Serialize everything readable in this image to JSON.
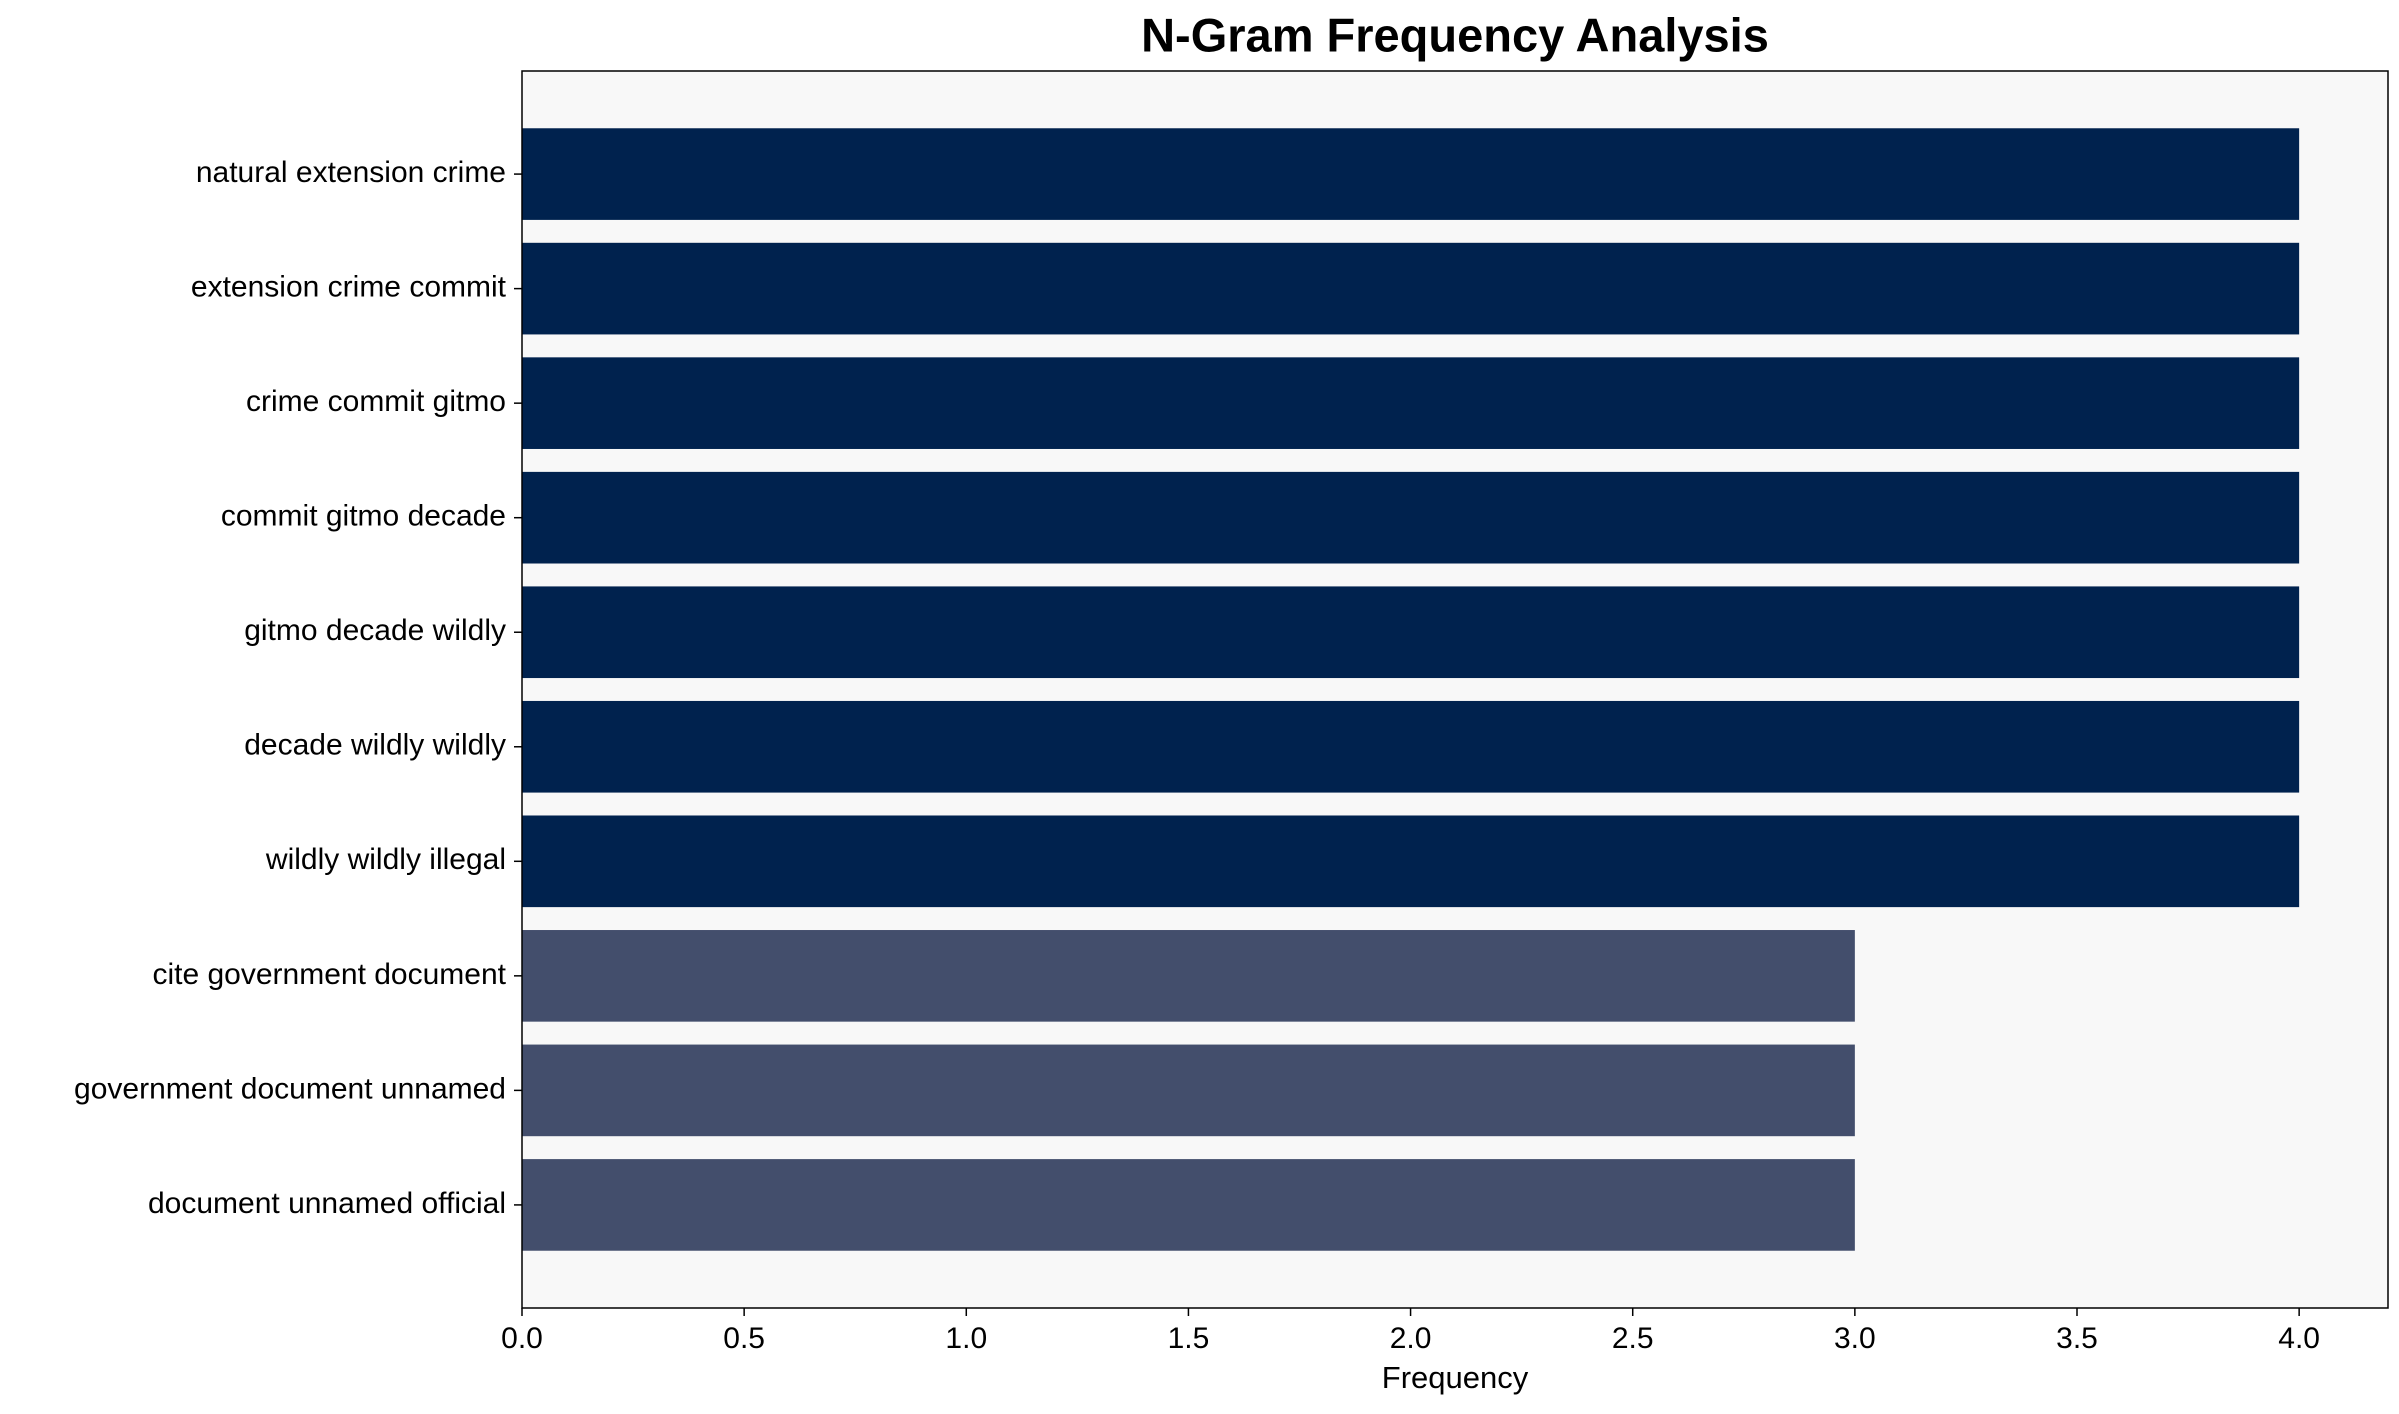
{
  "chart_data": {
    "type": "barh",
    "title": "N-Gram Frequency Analysis",
    "xlabel": "Frequency",
    "categories": [
      "natural extension crime",
      "extension crime commit",
      "crime commit gitmo",
      "commit gitmo decade",
      "gitmo decade wildly",
      "decade wildly wildly",
      "wildly wildly illegal",
      "cite government document",
      "government document unnamed",
      "document unnamed official"
    ],
    "values": [
      4,
      4,
      4,
      4,
      4,
      4,
      4,
      3,
      3,
      3
    ],
    "colors": [
      "#00224e",
      "#00224e",
      "#00224e",
      "#00224e",
      "#00224e",
      "#00224e",
      "#00224e",
      "#434e6c",
      "#434e6c",
      "#434e6c"
    ],
    "background": "#f8f8f8",
    "xlim": [
      0,
      4.2
    ],
    "xticks": [
      {
        "value": 0,
        "label": "0.0"
      },
      0.5,
      {
        "value": 1,
        "label": "1.0"
      },
      1.5,
      {
        "value": 2,
        "label": "2.0"
      },
      2.5,
      {
        "value": 3,
        "label": "3.0"
      },
      3.5,
      {
        "value": 4,
        "label": "4.0"
      }
    ]
  }
}
